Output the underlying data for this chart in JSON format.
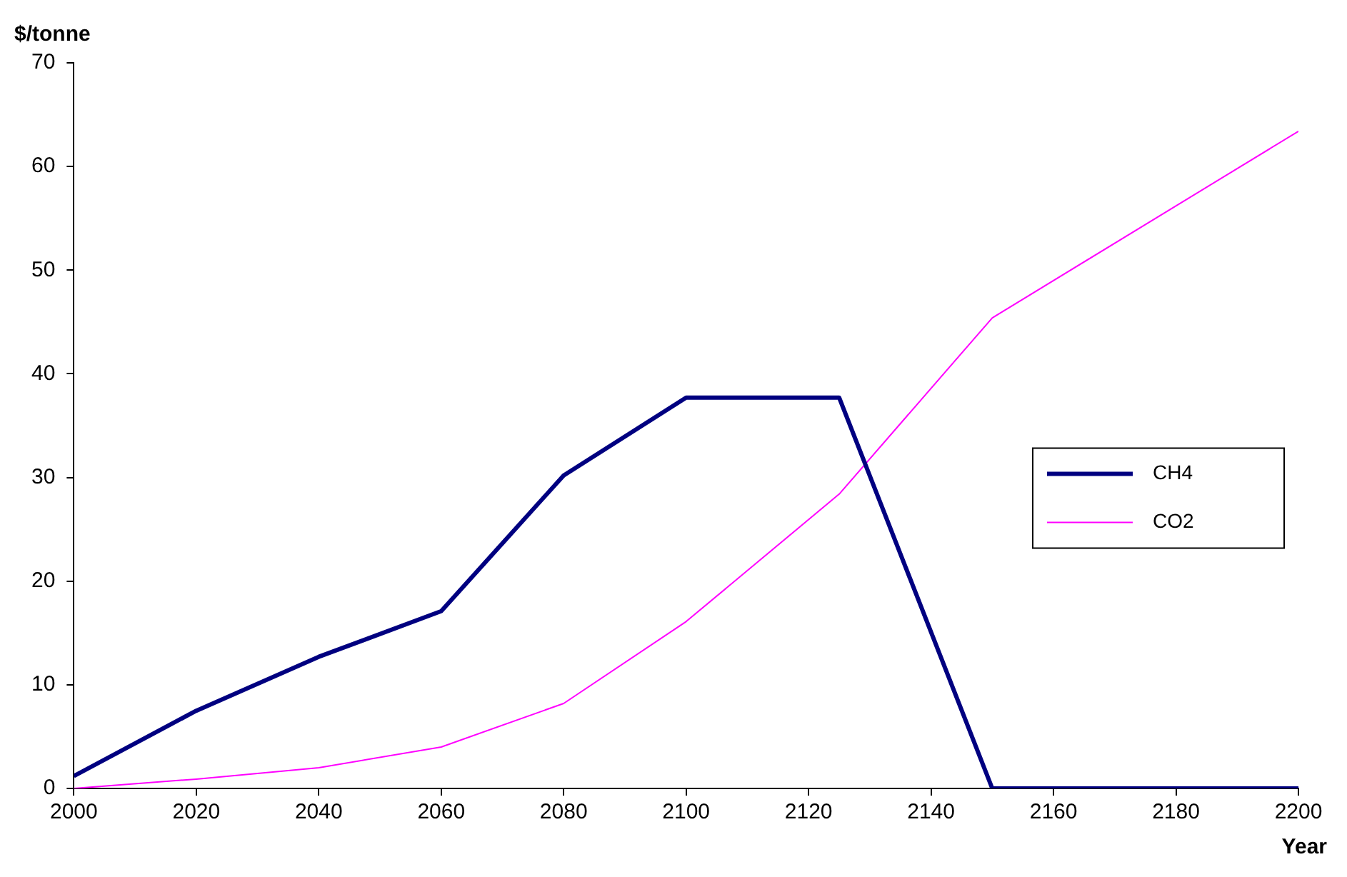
{
  "chart_data": {
    "type": "line",
    "ylabel": "$/tonne",
    "xlabel": "Year",
    "x": [
      2000,
      2020,
      2040,
      2060,
      2080,
      2100,
      2125,
      2150,
      2200
    ],
    "series": [
      {
        "name": "CH4",
        "color": "#000080",
        "values": [
          1.2,
          7.5,
          12.7,
          17.1,
          30.2,
          37.7,
          37.7,
          0,
          0
        ]
      },
      {
        "name": "CO2",
        "color": "#ff00ff",
        "values": [
          0,
          0.9,
          2,
          4,
          8.2,
          16.1,
          28.4,
          45.4,
          63.4
        ]
      }
    ],
    "xlim": [
      2000,
      2200
    ],
    "xticks": [
      2000,
      2020,
      2040,
      2060,
      2080,
      2100,
      2120,
      2140,
      2160,
      2180,
      2200
    ],
    "ylim": [
      0,
      70
    ],
    "yticks": [
      0,
      10,
      20,
      30,
      40,
      50,
      60,
      70
    ],
    "grid": false,
    "legend": "right",
    "marker": "none"
  }
}
